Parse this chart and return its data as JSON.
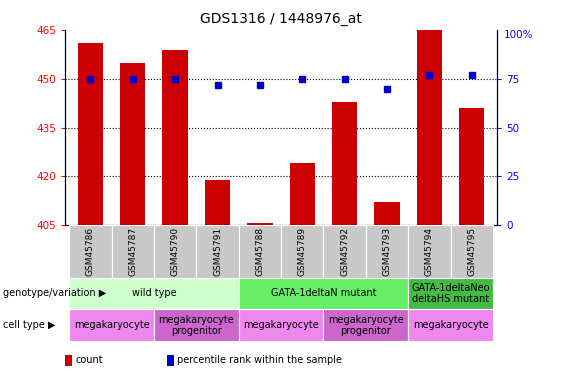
{
  "title": "GDS1316 / 1448976_at",
  "samples": [
    "GSM45786",
    "GSM45787",
    "GSM45790",
    "GSM45791",
    "GSM45788",
    "GSM45789",
    "GSM45792",
    "GSM45793",
    "GSM45794",
    "GSM45795"
  ],
  "bar_values": [
    461,
    455,
    459,
    419,
    405.5,
    424,
    443,
    412,
    465,
    441
  ],
  "dot_values": [
    75,
    75,
    75,
    72,
    72,
    75,
    75,
    70,
    77,
    77
  ],
  "ylim_left": [
    405,
    465
  ],
  "ylim_right": [
    0,
    100
  ],
  "yticks_left": [
    405,
    420,
    435,
    450,
    465
  ],
  "yticks_right": [
    0,
    25,
    50,
    75,
    100
  ],
  "bar_color": "#cc0000",
  "dot_color": "#0000cc",
  "genotype_groups": [
    {
      "label": "wild type",
      "start": 0,
      "end": 4,
      "color": "#ccffcc"
    },
    {
      "label": "GATA-1deltaN mutant",
      "start": 4,
      "end": 8,
      "color": "#66ee66"
    },
    {
      "label": "GATA-1deltaNeo\ndeltaHS mutant",
      "start": 8,
      "end": 10,
      "color": "#44bb44"
    }
  ],
  "cell_type_groups": [
    {
      "label": "megakaryocyte",
      "start": 0,
      "end": 2,
      "color": "#ee88ee"
    },
    {
      "label": "megakaryocyte\nprogenitor",
      "start": 2,
      "end": 4,
      "color": "#cc66cc"
    },
    {
      "label": "megakaryocyte",
      "start": 4,
      "end": 6,
      "color": "#ee88ee"
    },
    {
      "label": "megakaryocyte\nprogenitor",
      "start": 6,
      "end": 8,
      "color": "#cc66cc"
    },
    {
      "label": "megakaryocyte",
      "start": 8,
      "end": 10,
      "color": "#ee88ee"
    }
  ],
  "legend_items": [
    {
      "label": "count",
      "color": "#cc0000"
    },
    {
      "label": "percentile rank within the sample",
      "color": "#0000cc"
    }
  ],
  "sample_bg": "#c8c8c8",
  "tick_fontsize": 7.5,
  "title_fontsize": 10,
  "label_row_fontsize": 7,
  "sample_label_fontsize": 6.5
}
